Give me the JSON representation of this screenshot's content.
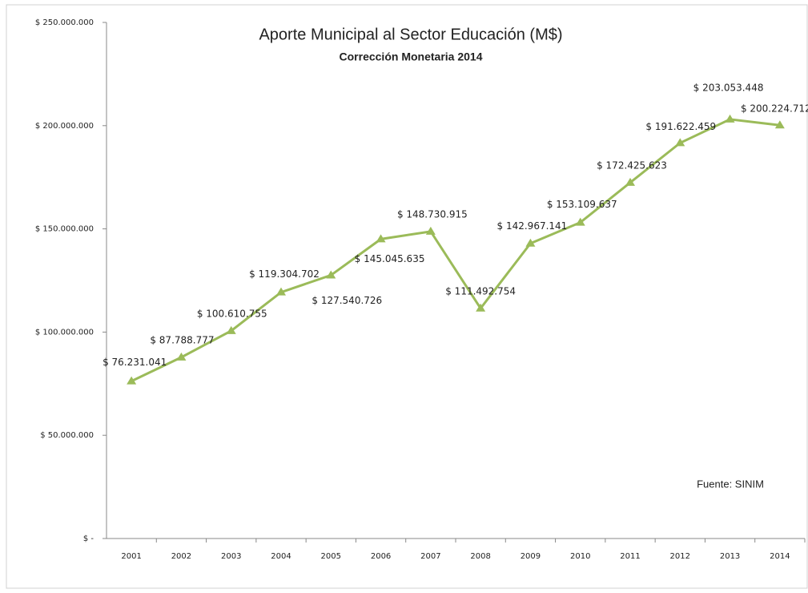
{
  "chart_data": {
    "type": "line",
    "title": "Aporte Municipal al Sector Educación (M$)",
    "subtitle": "Corrección Monetaria 2014",
    "annotation": "Fuente: SINIM",
    "categories": [
      "2001",
      "2002",
      "2003",
      "2004",
      "2005",
      "2006",
      "2007",
      "2008",
      "2009",
      "2010",
      "2011",
      "2012",
      "2013",
      "2014"
    ],
    "series": [
      {
        "name": "Aporte Municipal",
        "color": "#9bbb59",
        "values": [
          76231041,
          87788777,
          100610755,
          119304702,
          127540726,
          145045635,
          148730915,
          111492754,
          142967141,
          153109637,
          172425623,
          191622459,
          203053448,
          200224712
        ],
        "value_labels": [
          "$ 76.231.041",
          "$ 87.788.777",
          "$ 100.610.755",
          "$ 119.304.702",
          "$ 127.540.726",
          "$ 145.045.635",
          "$ 148.730.915",
          "$ 111.492.754",
          "$ 142.967.141",
          "$ 153.109.637",
          "$ 172.425.623",
          "$ 191.622.459",
          "$ 203.053.448",
          "$ 200.224.712"
        ]
      }
    ],
    "ylim": [
      0,
      250000000
    ],
    "yticks": [
      {
        "value": 0,
        "label": "$ -"
      },
      {
        "value": 50000000,
        "label": "$ 50.000.000"
      },
      {
        "value": 100000000,
        "label": "$ 100.000.000"
      },
      {
        "value": 150000000,
        "label": "$ 150.000.000"
      },
      {
        "value": 200000000,
        "label": "$ 200.000.000"
      },
      {
        "value": 250000000,
        "label": "$ 250.000.000"
      }
    ],
    "grid": false
  }
}
